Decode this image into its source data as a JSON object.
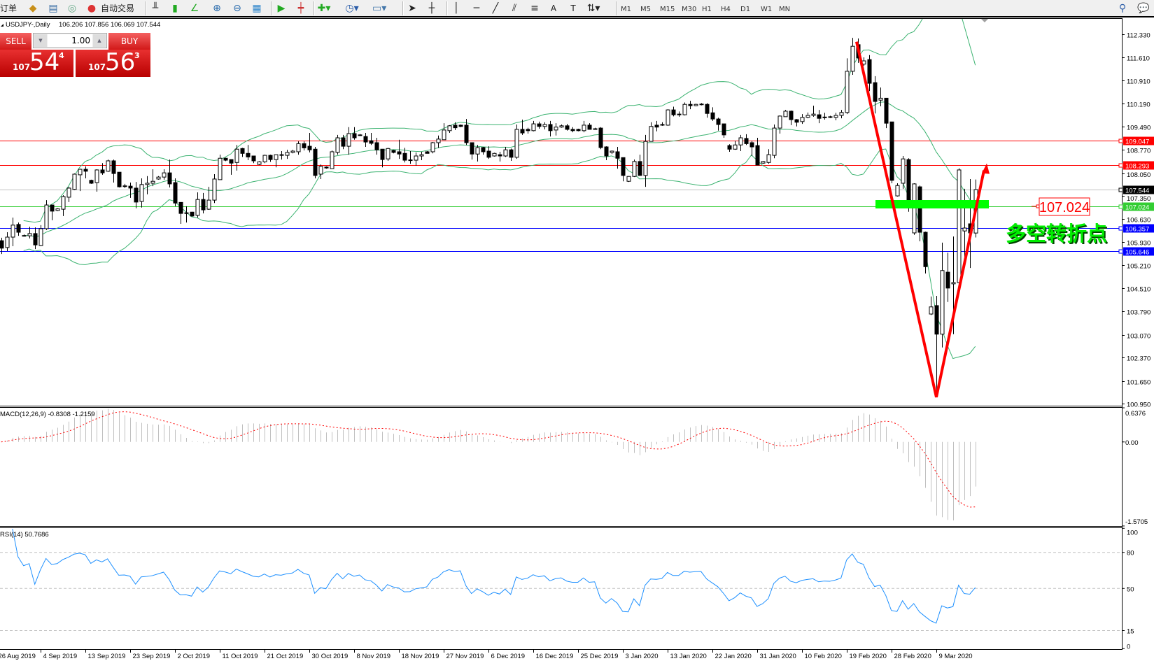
{
  "toolbar": {
    "new_order": "订单",
    "auto_trading": "自动交易",
    "periods": [
      "M1",
      "M5",
      "M15",
      "M30",
      "H1",
      "H4",
      "D1",
      "W1",
      "MN"
    ],
    "icons": [
      "market-watch-icon",
      "data-window-icon",
      "navigator-icon",
      "auto-trading-icon",
      "bar-chart-icon",
      "candlestick-icon",
      "line-chart-icon",
      "zoom-in-icon",
      "zoom-out-icon",
      "tile-windows-icon",
      "auto-scroll-icon",
      "chart-shift-icon",
      "indicators-icon",
      "periodicity-icon",
      "templates-icon",
      "cursor-icon",
      "crosshair-icon",
      "vertical-line-icon",
      "horizontal-line-icon",
      "trendline-icon",
      "channel-icon",
      "fibonacci-icon",
      "text-icon",
      "text-label-icon",
      "arrows-icon",
      "search-icon",
      "chat-icon"
    ]
  },
  "chart_header": {
    "symbol": "USDJPY-,Daily",
    "ohlc": "106.206 107.856 106.069 107.544"
  },
  "one_click": {
    "sell_label": "SELL",
    "buy_label": "BUY",
    "volume": "1.00",
    "sell_price": {
      "prefix": "107",
      "big": "54",
      "sup": "4"
    },
    "buy_price": {
      "prefix": "107",
      "big": "56",
      "sup": "3"
    }
  },
  "chart_data": {
    "type": "candlestick",
    "symbol": "USDJPY",
    "timeframe": "Daily",
    "price_axis": [
      "112.330",
      "111.610",
      "110.910",
      "110.190",
      "109.490",
      "108.770",
      "108.050",
      "107.350",
      "106.630",
      "105.930",
      "105.210",
      "104.510",
      "103.790",
      "103.070",
      "102.370",
      "101.650",
      "100.950"
    ],
    "date_labels": [
      "26 Aug 2019",
      "4 Sep 2019",
      "13 Sep 2019",
      "23 Sep 2019",
      "2 Oct 2019",
      "11 Oct 2019",
      "21 Oct 2019",
      "30 Oct 2019",
      "8 Nov 2019",
      "18 Nov 2019",
      "27 Nov 2019",
      "6 Dec 2019",
      "16 Dec 2019",
      "25 Dec 2019",
      "3 Jan 2020",
      "13 Jan 2020",
      "22 Jan 2020",
      "31 Jan 2020",
      "10 Feb 2020",
      "19 Feb 2020",
      "28 Feb 2020",
      "9 Mar 2020"
    ],
    "ohlc": [
      [
        105.97,
        106.06,
        105.56,
        105.74
      ],
      [
        105.76,
        106.23,
        105.65,
        106.08
      ],
      [
        106.08,
        106.68,
        105.8,
        106.45
      ],
      [
        106.47,
        106.53,
        106.12,
        106.23
      ],
      [
        106.12,
        106.16,
        106.1,
        106.13
      ],
      [
        106.12,
        106.4,
        106.04,
        106.19
      ],
      [
        106.19,
        106.38,
        105.71,
        105.84
      ],
      [
        105.82,
        106.45,
        105.8,
        106.34
      ],
      [
        106.34,
        107.22,
        106.3,
        107.07
      ],
      [
        107.07,
        107.07,
        106.6,
        106.88
      ],
      [
        106.9,
        106.97,
        106.88,
        106.95
      ],
      [
        106.94,
        107.37,
        106.73,
        107.33
      ],
      [
        107.31,
        107.63,
        107.16,
        107.59
      ],
      [
        107.55,
        108.04,
        107.53,
        108.02
      ],
      [
        108.0,
        108.19,
        107.5,
        108.17
      ],
      [
        108.17,
        108.26,
        107.89,
        108.11
      ],
      [
        107.83,
        107.85,
        107.72,
        107.74
      ],
      [
        107.76,
        108.17,
        107.48,
        108.15
      ],
      [
        108.15,
        108.36,
        108.0,
        108.06
      ],
      [
        108.11,
        108.47,
        108.09,
        108.43
      ],
      [
        108.43,
        108.47,
        107.76,
        108.04
      ],
      [
        108.08,
        108.08,
        107.61,
        107.63
      ],
      [
        107.66,
        107.72,
        107.59,
        107.65
      ],
      [
        107.65,
        107.76,
        107.29,
        107.59
      ],
      [
        107.59,
        107.78,
        106.97,
        107.16
      ],
      [
        107.18,
        107.89,
        106.99,
        107.7
      ],
      [
        107.7,
        107.96,
        107.4,
        107.74
      ],
      [
        107.74,
        108.17,
        107.65,
        107.8
      ],
      [
        107.87,
        107.96,
        107.85,
        107.93
      ],
      [
        107.93,
        108.17,
        107.85,
        108.06
      ],
      [
        108.06,
        108.47,
        107.61,
        107.72
      ],
      [
        107.76,
        107.89,
        107.03,
        107.13
      ],
      [
        107.15,
        107.15,
        106.49,
        106.81
      ],
      [
        106.83,
        107.03,
        106.53,
        106.82
      ],
      [
        106.85,
        106.86,
        106.71,
        106.73
      ],
      [
        106.75,
        107.46,
        106.68,
        107.24
      ],
      [
        107.24,
        107.44,
        106.81,
        106.92
      ],
      [
        106.94,
        107.63,
        106.92,
        107.22
      ],
      [
        107.22,
        108.02,
        107.13,
        107.87
      ],
      [
        107.85,
        108.62,
        107.85,
        108.51
      ],
      [
        108.51,
        108.53,
        108.42,
        108.45
      ],
      [
        108.47,
        108.47,
        108.0,
        108.36
      ],
      [
        108.38,
        108.92,
        108.13,
        108.79
      ],
      [
        108.81,
        108.83,
        108.55,
        108.66
      ],
      [
        108.66,
        108.92,
        108.45,
        108.55
      ],
      [
        108.58,
        108.58,
        108.36,
        108.43
      ],
      [
        108.32,
        108.42,
        108.3,
        108.4
      ],
      [
        108.4,
        108.62,
        108.36,
        108.6
      ],
      [
        108.6,
        108.62,
        108.4,
        108.47
      ],
      [
        108.47,
        108.62,
        108.23,
        108.62
      ],
      [
        108.62,
        108.73,
        108.47,
        108.6
      ],
      [
        108.6,
        108.77,
        108.49,
        108.69
      ],
      [
        108.69,
        108.77,
        108.66,
        108.73
      ],
      [
        108.71,
        109.03,
        108.62,
        108.96
      ],
      [
        108.96,
        109.03,
        108.75,
        108.83
      ],
      [
        108.88,
        109.29,
        108.69,
        108.77
      ],
      [
        108.79,
        108.86,
        107.89,
        107.98
      ],
      [
        108.02,
        108.32,
        107.87,
        108.26
      ],
      [
        108.24,
        108.26,
        108.19,
        108.21
      ],
      [
        108.19,
        108.75,
        108.19,
        108.71
      ],
      [
        108.69,
        109.23,
        108.62,
        109.14
      ],
      [
        109.14,
        109.23,
        108.79,
        108.88
      ],
      [
        108.88,
        109.47,
        108.62,
        109.27
      ],
      [
        109.27,
        109.47,
        109.08,
        109.14
      ],
      [
        109.22,
        109.26,
        109.2,
        109.23
      ],
      [
        109.18,
        109.29,
        108.86,
        109.01
      ],
      [
        109.05,
        109.29,
        108.92,
        108.97
      ],
      [
        108.99,
        109.14,
        108.62,
        108.77
      ],
      [
        108.79,
        108.79,
        108.23,
        108.47
      ],
      [
        108.49,
        108.83,
        108.43,
        108.81
      ],
      [
        108.75,
        108.77,
        108.66,
        108.69
      ],
      [
        108.71,
        109.08,
        108.49,
        108.64
      ],
      [
        108.66,
        108.83,
        108.38,
        108.45
      ],
      [
        108.45,
        108.73,
        108.34,
        108.46
      ],
      [
        108.45,
        108.69,
        108.28,
        108.58
      ],
      [
        108.58,
        108.71,
        108.45,
        108.62
      ],
      [
        108.71,
        108.73,
        108.66,
        108.66
      ],
      [
        108.71,
        109.01,
        108.66,
        108.99
      ],
      [
        108.99,
        109.21,
        108.83,
        109.1
      ],
      [
        109.08,
        109.59,
        109.08,
        109.38
      ],
      [
        109.36,
        109.53,
        109.29,
        109.51
      ],
      [
        109.53,
        109.62,
        109.38,
        109.45
      ],
      [
        109.53,
        109.55,
        109.47,
        109.49
      ],
      [
        109.53,
        109.72,
        108.92,
        108.99
      ],
      [
        108.99,
        108.99,
        108.47,
        108.64
      ],
      [
        108.64,
        108.92,
        108.41,
        108.84
      ],
      [
        108.84,
        108.86,
        108.62,
        108.71
      ],
      [
        108.73,
        108.88,
        108.49,
        108.54
      ],
      [
        108.58,
        108.68,
        108.56,
        108.66
      ],
      [
        108.62,
        108.71,
        108.41,
        108.58
      ],
      [
        108.58,
        108.86,
        108.55,
        108.77
      ],
      [
        108.77,
        108.81,
        108.43,
        108.54
      ],
      [
        108.54,
        109.55,
        108.49,
        109.4
      ],
      [
        109.4,
        109.7,
        109.23,
        109.29
      ],
      [
        109.4,
        109.45,
        109.27,
        109.36
      ],
      [
        109.36,
        109.66,
        109.34,
        109.57
      ],
      [
        109.57,
        109.64,
        109.42,
        109.49
      ],
      [
        109.49,
        109.62,
        109.4,
        109.55
      ],
      [
        109.55,
        109.66,
        109.18,
        109.36
      ],
      [
        109.38,
        109.59,
        109.21,
        109.47
      ],
      [
        109.47,
        109.55,
        109.45,
        109.51
      ],
      [
        109.51,
        109.57,
        109.36,
        109.4
      ],
      [
        109.4,
        109.47,
        109.31,
        109.36
      ],
      [
        109.4,
        109.42,
        109.34,
        109.36
      ],
      [
        109.36,
        109.66,
        109.31,
        109.53
      ],
      [
        109.53,
        109.59,
        109.4,
        109.4
      ],
      [
        109.42,
        109.45,
        109.4,
        109.42
      ],
      [
        109.44,
        109.47,
        108.79,
        108.84
      ],
      [
        108.86,
        108.88,
        108.45,
        108.58
      ],
      [
        108.69,
        108.75,
        108.64,
        108.73
      ],
      [
        108.71,
        108.86,
        108.19,
        108.51
      ],
      [
        108.53,
        108.53,
        107.8,
        107.98
      ],
      [
        107.8,
        107.96,
        107.78,
        107.95
      ],
      [
        107.95,
        108.47,
        107.93,
        108.41
      ],
      [
        108.41,
        108.62,
        107.98,
        107.98
      ],
      [
        107.98,
        109.23,
        107.63,
        109.03
      ],
      [
        109.03,
        109.62,
        109.03,
        109.49
      ],
      [
        109.53,
        109.66,
        109.34,
        109.47
      ],
      [
        109.55,
        109.62,
        109.51,
        109.53
      ],
      [
        109.53,
        110.02,
        109.51,
        110.0
      ],
      [
        110.0,
        110.1,
        109.8,
        109.85
      ],
      [
        109.87,
        109.95,
        109.79,
        109.85
      ],
      [
        109.85,
        110.23,
        109.83,
        110.17
      ],
      [
        110.17,
        110.28,
        110.02,
        110.13
      ],
      [
        110.13,
        110.19,
        110.11,
        110.17
      ],
      [
        110.17,
        110.21,
        110.14,
        110.18
      ],
      [
        110.17,
        110.21,
        109.76,
        109.89
      ],
      [
        109.91,
        110.08,
        109.66,
        109.72
      ],
      [
        109.72,
        109.76,
        109.36,
        109.55
      ],
      [
        109.57,
        109.57,
        109.14,
        109.23
      ],
      [
        108.9,
        108.94,
        108.71,
        108.79
      ],
      [
        108.79,
        109.05,
        108.77,
        108.92
      ],
      [
        108.92,
        109.23,
        108.73,
        109.14
      ],
      [
        109.12,
        109.25,
        108.92,
        108.96
      ],
      [
        108.99,
        109.05,
        108.58,
        108.86
      ],
      [
        108.9,
        109.14,
        108.3,
        108.3
      ],
      [
        108.36,
        108.43,
        108.34,
        108.41
      ],
      [
        108.38,
        108.79,
        108.34,
        108.62
      ],
      [
        108.6,
        109.55,
        108.51,
        109.44
      ],
      [
        109.44,
        109.83,
        109.27,
        109.81
      ],
      [
        109.79,
        110.0,
        109.79,
        109.96
      ],
      [
        109.96,
        109.98,
        109.53,
        109.7
      ],
      [
        109.7,
        109.72,
        109.49,
        109.62
      ],
      [
        109.64,
        109.87,
        109.57,
        109.77
      ],
      [
        109.77,
        109.92,
        109.74,
        109.83
      ],
      [
        109.83,
        110.13,
        109.79,
        109.87
      ],
      [
        109.85,
        110.0,
        109.59,
        109.74
      ],
      [
        109.77,
        109.91,
        109.7,
        109.78
      ],
      [
        109.79,
        109.82,
        109.75,
        109.77
      ],
      [
        109.77,
        109.91,
        109.68,
        109.83
      ],
      [
        109.83,
        110.0,
        109.74,
        109.92
      ],
      [
        109.92,
        111.59,
        109.87,
        111.19
      ],
      [
        111.19,
        112.22,
        111.08,
        111.96
      ],
      [
        112.01,
        112.2,
        111.45,
        111.6
      ],
      [
        111.41,
        111.62,
        111.36,
        111.51
      ],
      [
        111.55,
        111.69,
        110.58,
        110.82
      ],
      [
        110.84,
        111.04,
        109.89,
        110.26
      ],
      [
        110.3,
        110.69,
        110.11,
        110.36
      ],
      [
        110.36,
        110.36,
        109.44,
        109.59
      ],
      [
        109.63,
        109.63,
        107.74,
        107.83
      ],
      [
        107.35,
        107.74,
        107.33,
        107.67
      ],
      [
        107.74,
        108.58,
        107.57,
        108.49
      ],
      [
        108.47,
        108.51,
        106.86,
        107.22
      ],
      [
        106.21,
        107.74,
        106.15,
        107.72
      ],
      [
        107.63,
        107.67,
        105.95,
        106.23
      ],
      [
        106.23,
        106.25,
        104.96,
        105.17
      ],
      [
        103.71,
        104.25,
        103.68,
        103.93
      ],
      [
        103.97,
        104.27,
        101.17,
        103.09
      ],
      [
        103.09,
        105.91,
        102.68,
        105.05
      ],
      [
        105.0,
        105.6,
        104.08,
        104.51
      ],
      [
        104.64,
        106.1,
        103.09,
        104.68
      ],
      [
        104.68,
        108.2,
        104.6,
        108.15
      ],
      [
        106.27,
        107.57,
        105.2,
        106.36
      ],
      [
        106.49,
        107.87,
        105.13,
        106.21
      ],
      [
        106.206,
        107.856,
        106.069,
        107.544
      ]
    ],
    "indicators": {
      "bollinger": {
        "period": 20,
        "deviation": 2,
        "color": "#3cb371"
      },
      "macd": {
        "label": "MACD(12,26,9) -0.8308 -1.2159",
        "fast": 12,
        "slow": 26,
        "signal": 9,
        "axis": [
          "0.6376",
          "0.00",
          "-1.5705"
        ],
        "range": [
          -1.5705,
          0.6376
        ],
        "histogram_color": "#c0c0c0",
        "signal_color": "#ff0000"
      },
      "rsi": {
        "label": "RSI(14) 50.7686",
        "period": 14,
        "axis": [
          "100",
          "80",
          "50",
          "15",
          "0"
        ],
        "levels": [
          80,
          50,
          15
        ],
        "color": "#1e90ff"
      }
    },
    "hlines": [
      {
        "price": 109.047,
        "label": "109.047",
        "color": "#ff0000",
        "text_color": "#ffffff"
      },
      {
        "price": 108.293,
        "label": "108.293",
        "color": "#ff0000",
        "text_color": "#ffffff"
      },
      {
        "price": 107.544,
        "label": "107.544",
        "color": "#000000",
        "line_color": "#c0c0c0",
        "text_color": "#ffffff"
      },
      {
        "price": 107.024,
        "label": "107.024",
        "color": "#32cd32",
        "text_color": "#ffffff"
      },
      {
        "price": 106.357,
        "label": "106.357",
        "color": "#0000ff",
        "text_color": "#ffffff"
      },
      {
        "price": 105.646,
        "label": "105.646",
        "color": "#0000ff",
        "text_color": "#ffffff"
      }
    ],
    "annotations": {
      "price_tag": "107.024",
      "pivot_text": "多空转折点",
      "pivot_color": "#00ff00",
      "v_arrow_color": "#ff0000",
      "v_path_prices": [
        112.1,
        101.15,
        108.35
      ]
    }
  }
}
